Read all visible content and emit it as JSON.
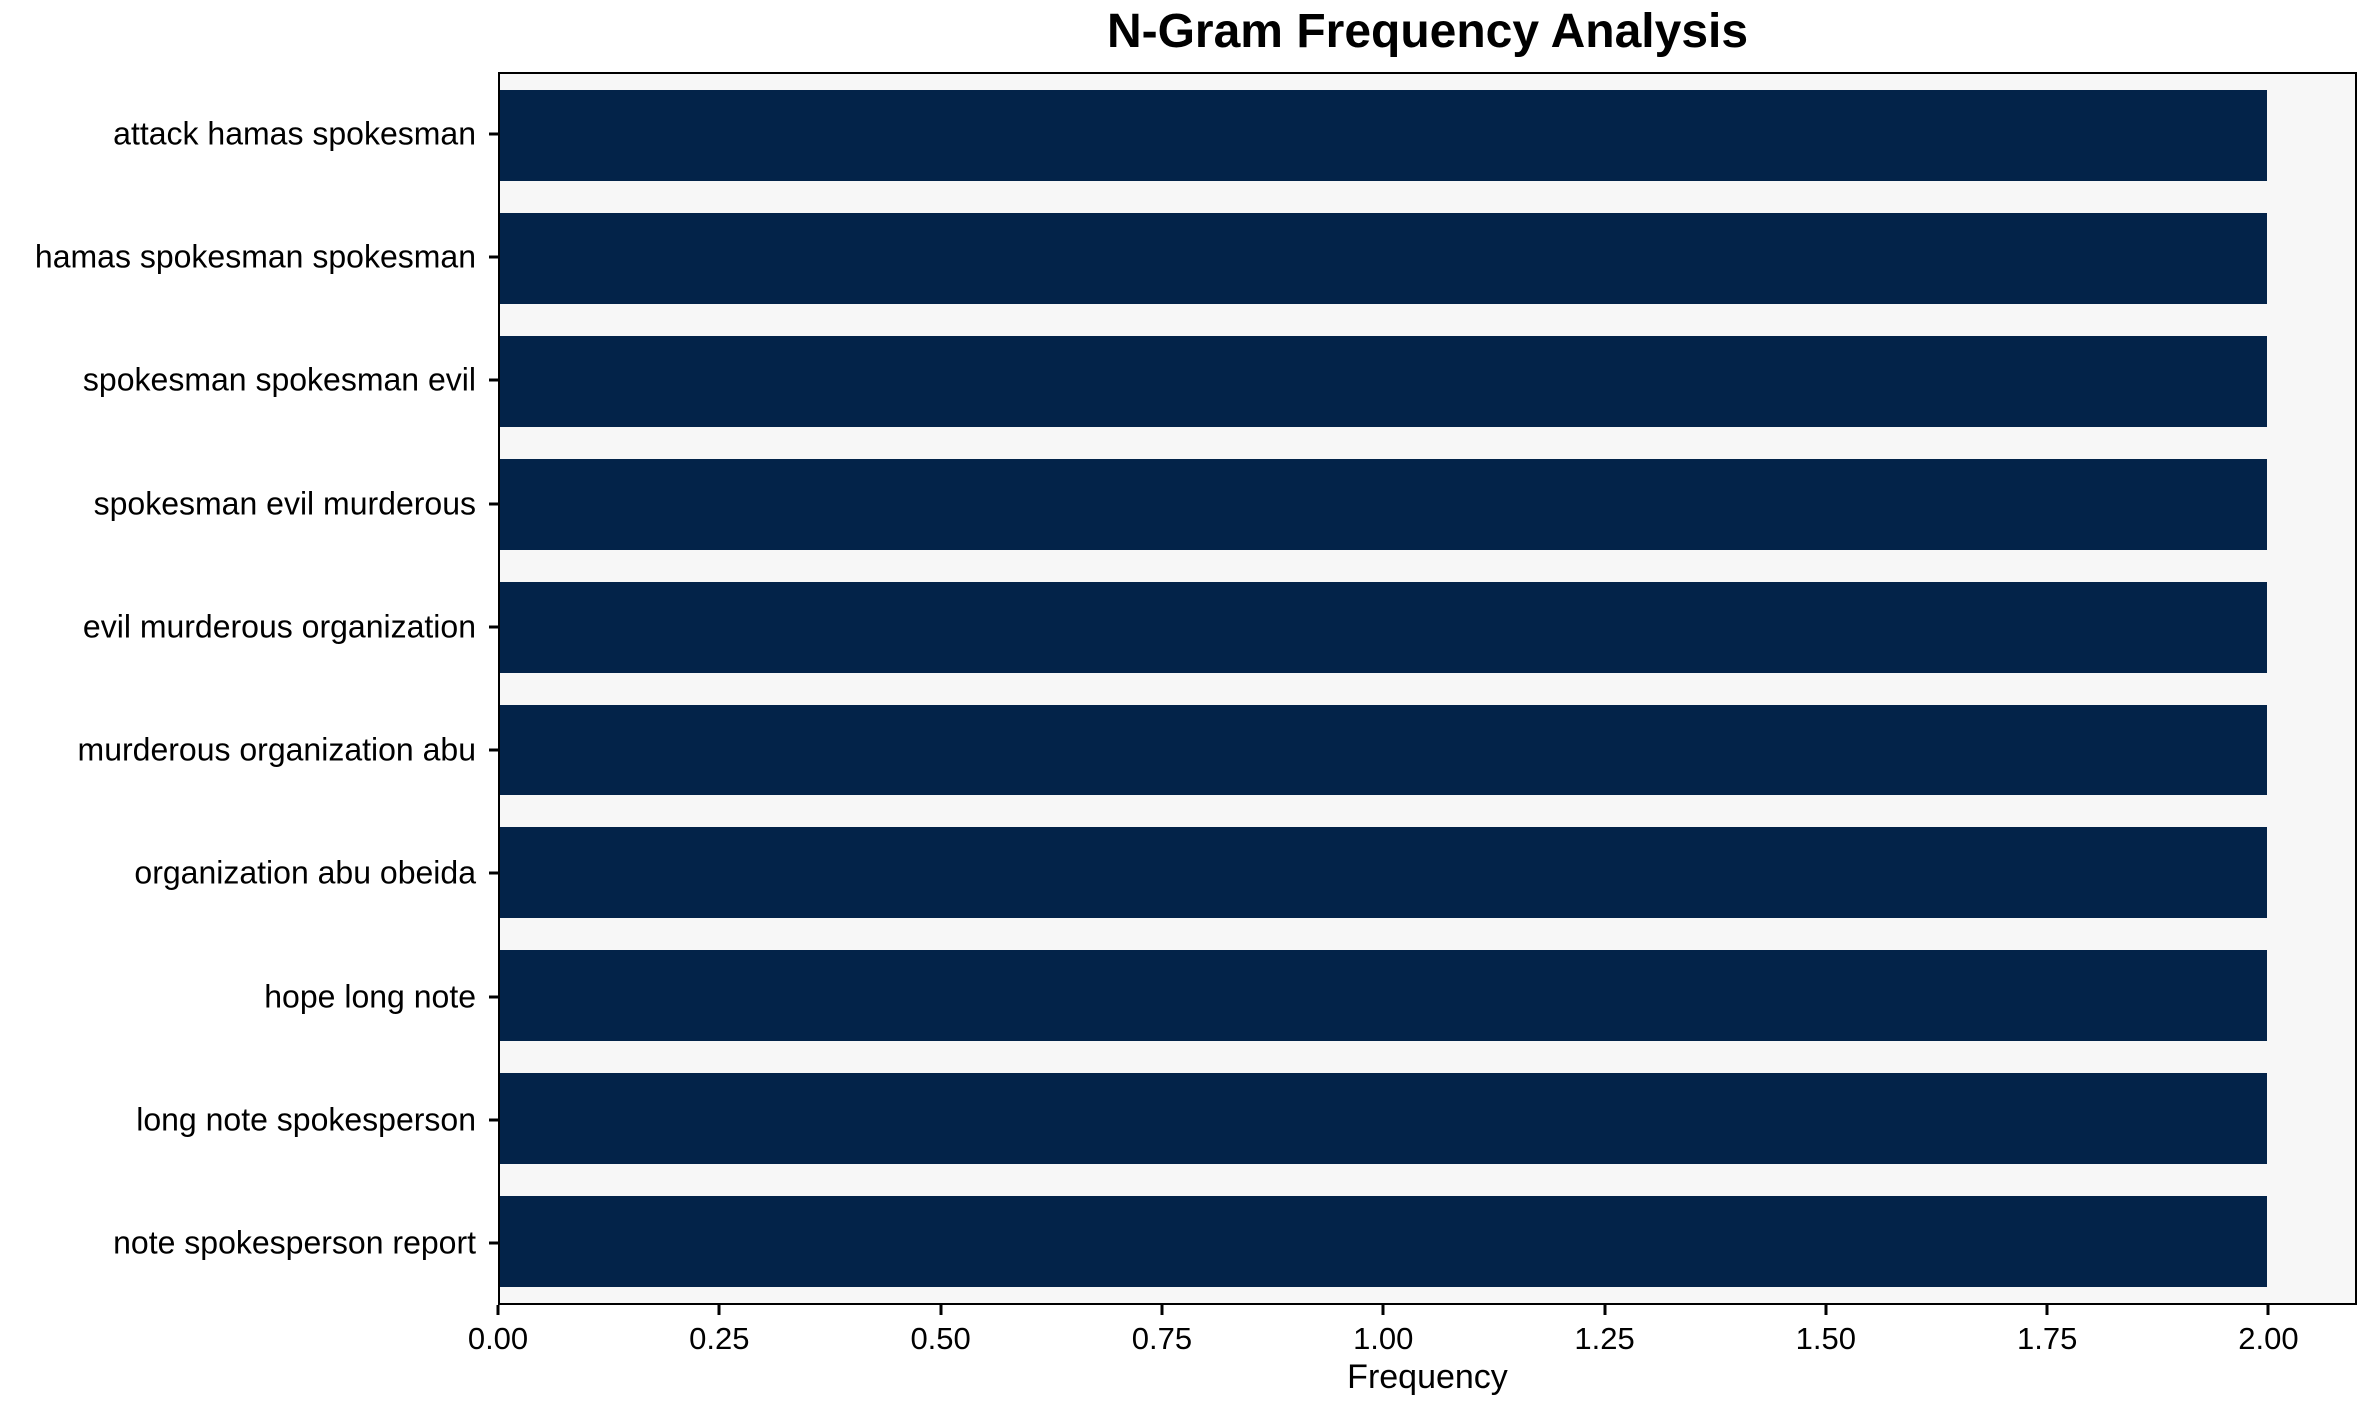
{
  "chart_data": {
    "type": "bar",
    "orientation": "horizontal",
    "title": "N-Gram Frequency Analysis",
    "xlabel": "Frequency",
    "ylabel": "",
    "categories": [
      "attack hamas spokesman",
      "hamas spokesman spokesman",
      "spokesman spokesman evil",
      "spokesman evil murderous",
      "evil murderous organization",
      "murderous organization abu",
      "organization abu obeida",
      "hope long note",
      "long note spokesperson",
      "note spokesperson report"
    ],
    "values": [
      2,
      2,
      2,
      2,
      2,
      2,
      2,
      2,
      2,
      2
    ],
    "xlim": [
      0,
      2.1
    ],
    "xtick_values": [
      0,
      0.25,
      0.5,
      0.75,
      1.0,
      1.25,
      1.5,
      1.75,
      2.0
    ],
    "xtick_labels": [
      "0.00",
      "0.25",
      "0.50",
      "0.75",
      "1.00",
      "1.25",
      "1.50",
      "1.75",
      "2.00"
    ],
    "grid": false,
    "legend": null,
    "bar_color": "#032349",
    "plot_background": "#f7f7f7",
    "figure_background": "#ffffff",
    "text_color": "#000000"
  }
}
